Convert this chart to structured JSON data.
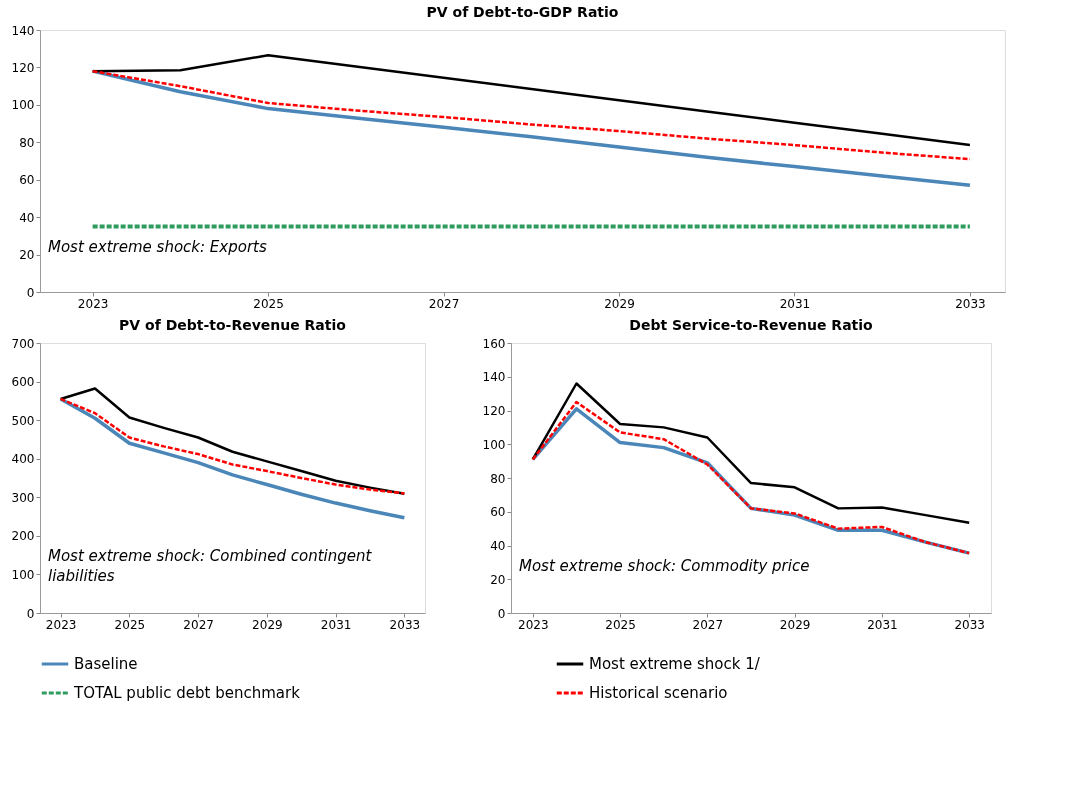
{
  "chart_data": [
    {
      "type": "line",
      "title": "PV of Debt-to-GDP Ratio",
      "x": [
        2023,
        2024,
        2025,
        2026,
        2027,
        2028,
        2029,
        2030,
        2031,
        2032,
        2033
      ],
      "xlim": [
        2022.4,
        2033.4
      ],
      "xticks": [
        2023,
        2025,
        2027,
        2029,
        2031,
        2033
      ],
      "ylim": [
        0,
        140
      ],
      "yticks": [
        0,
        20,
        40,
        60,
        80,
        100,
        120,
        140
      ],
      "grid": false,
      "legend": "bottom",
      "annotations": [
        "Most extreme shock: Exports"
      ],
      "series": [
        {
          "name": "Baseline",
          "color": "#4a86b8",
          "line_style": "solid",
          "values": [
            118,
            107,
            98,
            93,
            88,
            83,
            77.5,
            72,
            67,
            62,
            57
          ]
        },
        {
          "name": "Most extreme shock 1/",
          "color": "#000000",
          "line_style": "solid",
          "values": [
            118,
            118.5,
            126.5,
            120.5,
            114.5,
            108.5,
            102.5,
            96.5,
            90.5,
            84.5,
            78.5
          ]
        },
        {
          "name": "TOTAL public debt benchmark",
          "color": "#2e9b5f",
          "line_style": "dashed",
          "values": [
            35,
            35,
            35,
            35,
            35,
            35,
            35,
            35,
            35,
            35,
            35
          ]
        },
        {
          "name": "Historical scenario",
          "color": "#ff0000",
          "line_style": "dashed",
          "values": [
            118,
            110,
            101,
            97,
            93.5,
            89.5,
            86,
            82,
            78.5,
            74.5,
            71
          ]
        }
      ]
    },
    {
      "type": "line",
      "title": "PV of Debt-to-Revenue Ratio",
      "x": [
        2023,
        2024,
        2025,
        2026,
        2027,
        2028,
        2029,
        2030,
        2031,
        2032,
        2033
      ],
      "xlim": [
        2022.4,
        2033.6
      ],
      "xticks": [
        2023,
        2025,
        2027,
        2029,
        2031,
        2033
      ],
      "ylim": [
        0,
        700
      ],
      "yticks": [
        0,
        100,
        200,
        300,
        400,
        500,
        600,
        700
      ],
      "grid": false,
      "annotations": [
        "Most extreme shock: Combined contingent liabilities"
      ],
      "series": [
        {
          "name": "Baseline",
          "color": "#4a86b8",
          "line_style": "solid",
          "values": [
            555,
            505,
            440,
            415,
            390,
            358,
            333,
            308,
            285,
            265,
            247
          ]
        },
        {
          "name": "Most extreme shock 1/",
          "color": "#000000",
          "line_style": "solid",
          "values": [
            555,
            582,
            507,
            480,
            455,
            418,
            393,
            368,
            343,
            325,
            309
          ]
        },
        {
          "name": "Historical scenario",
          "color": "#ff0000",
          "line_style": "dashed",
          "values": [
            555,
            518,
            455,
            432,
            412,
            385,
            368,
            350,
            333,
            320,
            310
          ]
        }
      ]
    },
    {
      "type": "line",
      "title": "Debt Service-to-Revenue Ratio",
      "x": [
        2023,
        2024,
        2025,
        2026,
        2027,
        2028,
        2029,
        2030,
        2031,
        2032,
        2033
      ],
      "xlim": [
        2022.5,
        2033.5
      ],
      "xticks": [
        2023,
        2025,
        2027,
        2029,
        2031,
        2033
      ],
      "ylim": [
        0,
        160
      ],
      "yticks": [
        0,
        20,
        40,
        60,
        80,
        100,
        120,
        140,
        160
      ],
      "grid": false,
      "annotations": [
        "Most extreme shock: Commodity price"
      ],
      "series": [
        {
          "name": "Baseline",
          "color": "#4a86b8",
          "line_style": "solid",
          "values": [
            91,
            121,
            101,
            98,
            89,
            62,
            58,
            49,
            49,
            42,
            35.5
          ]
        },
        {
          "name": "Most extreme shock 1/",
          "color": "#000000",
          "line_style": "solid",
          "values": [
            91,
            136,
            112,
            110,
            104,
            77,
            74.5,
            62,
            62.5,
            58,
            53.5
          ]
        },
        {
          "name": "Historical scenario",
          "color": "#ff0000",
          "line_style": "dashed",
          "values": [
            91,
            125,
            107,
            103,
            88,
            62,
            59,
            50,
            51,
            42,
            35.5
          ]
        }
      ]
    }
  ]
}
